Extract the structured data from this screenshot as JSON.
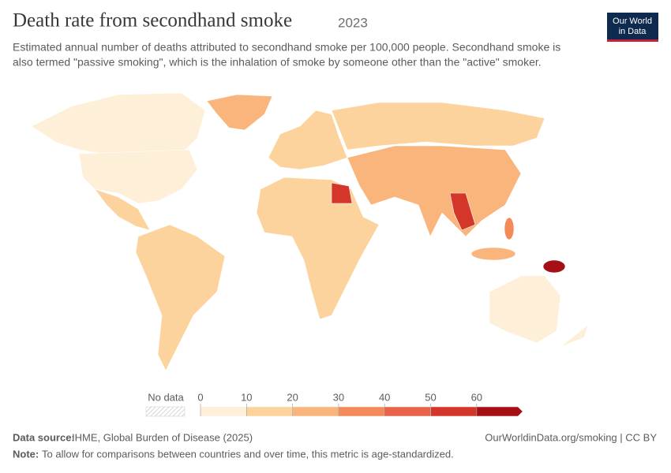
{
  "header": {
    "title": "Death rate from secondhand smoke",
    "year": "2023",
    "subtitle_lines": [
      "Estimated annual number of deaths attributed to secondhand smoke per 100,000 people. Secondhand smoke is",
      "also termed \"passive smoking\", which is the inhalation of smoke by someone other than the \"active\" smoker."
    ],
    "logo_lines": [
      "Our World",
      "in Data"
    ]
  },
  "legend": {
    "no_data": "No data",
    "ticks": [
      0,
      10,
      20,
      30,
      40,
      50,
      60
    ],
    "colors": [
      "#fdefd8",
      "#fcd39c",
      "#f9b57b",
      "#f4895a",
      "#e8634a",
      "#d4372a",
      "#a50f15"
    ]
  },
  "footer": {
    "source_label": "Data source:",
    "source": "IHME, Global Burden of Disease (2025)",
    "url": "OurWorldinData.org/smoking | CC BY",
    "note_label": "Note:",
    "note": "To allow for comparisons between countries and over time, this metric is age-standardized."
  }
}
